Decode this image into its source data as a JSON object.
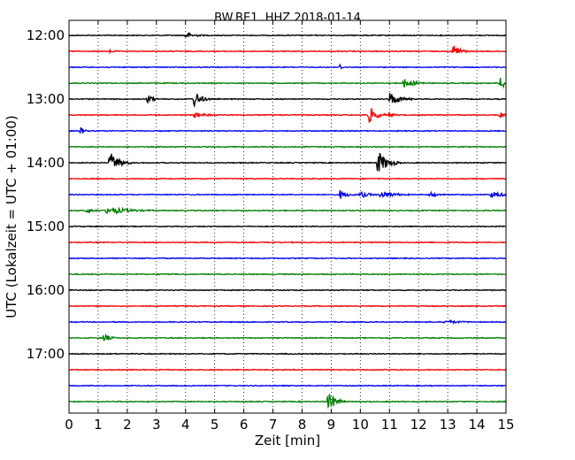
{
  "chart_data": {
    "type": "line",
    "title": "BW.BE1..HHZ 2018-01-14",
    "xlabel": "Zeit  [min]",
    "ylabel": "UTC (Lokalzeit = UTC + 01:00)",
    "xlim": [
      0,
      15
    ],
    "x_ticks": [
      "0",
      "1",
      "2",
      "3",
      "4",
      "5",
      "6",
      "7",
      "8",
      "9",
      "10",
      "11",
      "12",
      "13",
      "14",
      "15"
    ],
    "hour_labels": [
      {
        "row": 0,
        "label": "12:00"
      },
      {
        "row": 4,
        "label": "13:00"
      },
      {
        "row": 8,
        "label": "14:00"
      },
      {
        "row": 12,
        "label": "15:00"
      },
      {
        "row": 16,
        "label": "16:00"
      },
      {
        "row": 20,
        "label": "17:00"
      }
    ],
    "grid": "vertical-dotted",
    "colors": [
      "#000000",
      "#ff0000",
      "#0000ff",
      "#008000"
    ],
    "events": [
      {
        "row": 0,
        "t": 4.0,
        "amp": 0.35,
        "dur": 0.7
      },
      {
        "row": 1,
        "t": 1.4,
        "amp": 0.2,
        "dur": 0.3
      },
      {
        "row": 1,
        "t": 13.2,
        "amp": 1.0,
        "dur": 0.5
      },
      {
        "row": 2,
        "t": 9.3,
        "amp": 0.35,
        "dur": 0.15
      },
      {
        "row": 3,
        "t": 11.5,
        "amp": 0.55,
        "dur": 0.8
      },
      {
        "row": 3,
        "t": 14.8,
        "amp": 1.0,
        "dur": 0.4
      },
      {
        "row": 4,
        "t": 2.7,
        "amp": 0.5,
        "dur": 0.4
      },
      {
        "row": 4,
        "t": 4.3,
        "amp": 0.9,
        "dur": 0.6
      },
      {
        "row": 4,
        "t": 11.0,
        "amp": 0.8,
        "dur": 0.8
      },
      {
        "row": 5,
        "t": 4.3,
        "amp": 0.35,
        "dur": 0.8
      },
      {
        "row": 5,
        "t": 10.3,
        "amp": 1.0,
        "dur": 0.6
      },
      {
        "row": 5,
        "t": 11.0,
        "amp": 0.4,
        "dur": 0.3
      },
      {
        "row": 5,
        "t": 14.8,
        "amp": 0.4,
        "dur": 0.3
      },
      {
        "row": 6,
        "t": 0.4,
        "amp": 0.45,
        "dur": 0.3
      },
      {
        "row": 8,
        "t": 1.4,
        "amp": 1.2,
        "dur": 0.8
      },
      {
        "row": 8,
        "t": 10.6,
        "amp": 1.4,
        "dur": 0.8
      },
      {
        "row": 10,
        "t": 9.3,
        "amp": 0.5,
        "dur": 0.6
      },
      {
        "row": 10,
        "t": 10.0,
        "amp": 0.4,
        "dur": 0.6
      },
      {
        "row": 10,
        "t": 10.7,
        "amp": 0.45,
        "dur": 1.0
      },
      {
        "row": 10,
        "t": 12.4,
        "amp": 0.35,
        "dur": 0.5
      },
      {
        "row": 10,
        "t": 14.5,
        "amp": 0.35,
        "dur": 1.0
      },
      {
        "row": 11,
        "t": 1.3,
        "amp": 0.45,
        "dur": 1.6
      },
      {
        "row": 11,
        "t": 0.6,
        "amp": 0.25,
        "dur": 0.6
      },
      {
        "row": 18,
        "t": 12.9,
        "amp": 0.2,
        "dur": 1.0
      },
      {
        "row": 19,
        "t": 1.2,
        "amp": 0.55,
        "dur": 0.4
      },
      {
        "row": 23,
        "t": 8.9,
        "amp": 1.3,
        "dur": 0.6
      }
    ]
  }
}
